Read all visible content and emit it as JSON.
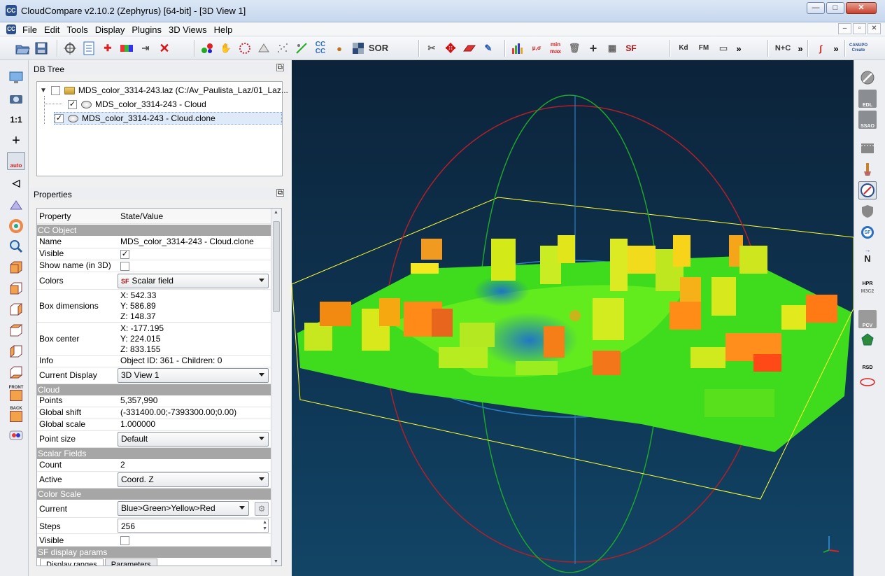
{
  "window": {
    "title": "CloudCompare v2.10.2 (Zephyrus) [64-bit] - [3D View 1]",
    "app_icon": "CC",
    "buttons": {
      "minimize": "—",
      "maximize": "□",
      "close": "✕"
    }
  },
  "menubar": {
    "items": [
      "File",
      "Edit",
      "Tools",
      "Display",
      "Plugins",
      "3D Views",
      "Help"
    ],
    "mdi_buttons": {
      "minimize": "–",
      "restore": "▫",
      "close": "✕"
    }
  },
  "toolbar": {
    "sor_label": "SOR",
    "ccc_label": "CC\nCC",
    "sf_label": "SF",
    "kd_label": "Kd",
    "fm_label": "FM",
    "nc_label": "N+C",
    "minmax_label": "min max",
    "mu_sigma_label": "μ,σ",
    "canupo_label": "CANUPO Create",
    "more1": "»",
    "more2": "»",
    "more3": "»"
  },
  "lefttoolbar": {
    "zoom11_label": "1:1",
    "auto_label": "auto",
    "front_label": "FRONT",
    "back_label": "BACK"
  },
  "dbtree": {
    "title": "DB Tree",
    "items": [
      {
        "label": "MDS_color_3314-243.laz (C:/Av_Paulista_Laz/01_Laz...",
        "checked": false
      },
      {
        "label": "MDS_color_3314-243 - Cloud",
        "checked": true
      },
      {
        "label": "MDS_color_3314-243 - Cloud.clone",
        "checked": true
      }
    ]
  },
  "properties": {
    "title": "Properties",
    "header": {
      "property": "Property",
      "value": "State/Value"
    },
    "sections": {
      "cc_object": "CC Object",
      "cloud": "Cloud",
      "scalar_fields": "Scalar Fields",
      "color_scale": "Color Scale",
      "sf_display": "SF display params"
    },
    "rows": {
      "name": {
        "k": "Name",
        "v": "MDS_color_3314-243 - Cloud.clone"
      },
      "visible": {
        "k": "Visible",
        "v": "✓"
      },
      "show_name": {
        "k": "Show name (in 3D)",
        "v": ""
      },
      "colors": {
        "k": "Colors",
        "v": "Scalar field"
      },
      "box_dims": {
        "k": "Box dimensions",
        "x": "X: 542.33",
        "y": "Y: 586.89",
        "z": "Z: 148.37"
      },
      "box_center": {
        "k": "Box center",
        "x": "X: -177.195",
        "y": "Y: 224.015",
        "z": "Z: 833.155"
      },
      "info": {
        "k": "Info",
        "v": "Object ID: 361 - Children: 0"
      },
      "current_display": {
        "k": "Current Display",
        "v": "3D View 1"
      },
      "points": {
        "k": "Points",
        "v": "5,357,990"
      },
      "global_shift": {
        "k": "Global shift",
        "v": "(-331400.00;-7393300.00;0.00)"
      },
      "global_scale": {
        "k": "Global scale",
        "v": "1.000000"
      },
      "point_size": {
        "k": "Point size",
        "v": "Default"
      },
      "count": {
        "k": "Count",
        "v": "2"
      },
      "active": {
        "k": "Active",
        "v": "Coord. Z"
      },
      "current": {
        "k": "Current",
        "v": "Blue>Green>Yellow>Red"
      },
      "steps": {
        "k": "Steps",
        "v": "256"
      },
      "cs_visible": {
        "k": "Visible",
        "v": ""
      }
    },
    "tabs": [
      "Display ranges",
      "Parameters"
    ]
  },
  "righttoolbar": {
    "edl": "EDL",
    "ssao": "SSAO",
    "north": "N",
    "hpr": "HPR",
    "m3c2": "M3C2",
    "pcv": "PCV",
    "rsd": "RSD",
    "sf": "SF"
  },
  "colors": {
    "view_bg_top": "#0c233a",
    "view_bg_bottom": "#124566",
    "bbox": "#ffff33",
    "sphere_red": "#b0202a",
    "sphere_green": "#1fa52a",
    "sphere_blue": "#2a7fc4"
  }
}
